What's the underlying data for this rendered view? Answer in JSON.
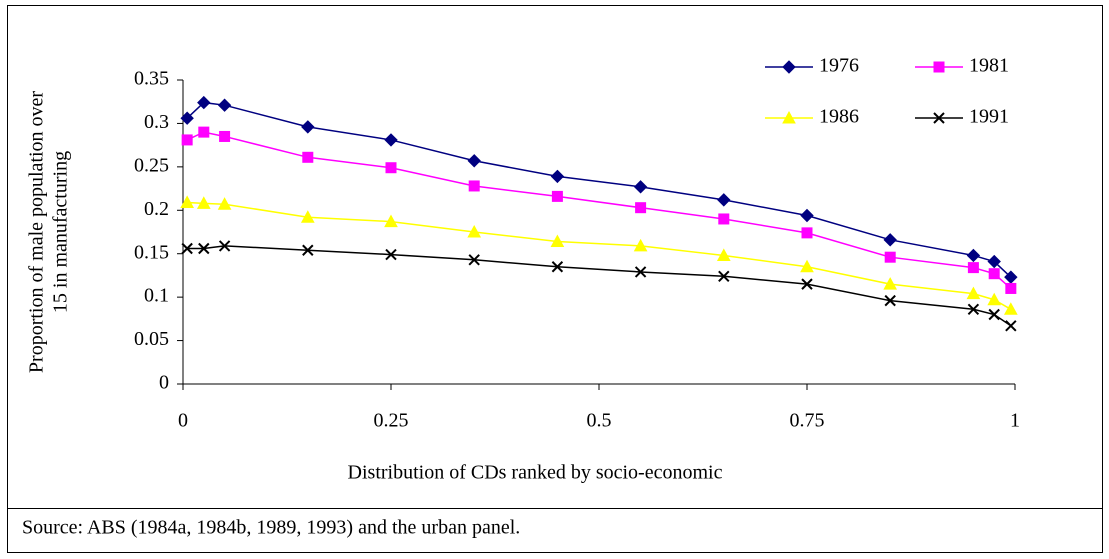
{
  "chart_data": {
    "type": "line",
    "ylabel": [
      "Proportion of male population over",
      "15  in manufacturing"
    ],
    "xlabel": "Distribution of CDs ranked by socio-economic",
    "note": "Source: ABS (1984a, 1984b, 1989, 1993) and the urban panel.",
    "x": [
      0.005,
      0.025,
      0.05,
      0.15,
      0.25,
      0.35,
      0.45,
      0.55,
      0.65,
      0.75,
      0.85,
      0.95,
      0.975,
      0.995
    ],
    "series": [
      {
        "name": "1976",
        "color": "#000080",
        "marker": "diamond",
        "values": [
          0.306,
          0.324,
          0.321,
          0.296,
          0.281,
          0.257,
          0.239,
          0.227,
          0.212,
          0.194,
          0.166,
          0.148,
          0.141,
          0.123
        ]
      },
      {
        "name": "1981",
        "color": "#ff00ff",
        "marker": "square",
        "values": [
          0.281,
          0.29,
          0.285,
          0.261,
          0.249,
          0.228,
          0.216,
          0.203,
          0.19,
          0.174,
          0.146,
          0.134,
          0.127,
          0.11
        ]
      },
      {
        "name": "1986",
        "color": "#ffff00",
        "marker": "triangle",
        "values": [
          0.209,
          0.208,
          0.207,
          0.192,
          0.187,
          0.175,
          0.164,
          0.159,
          0.148,
          0.135,
          0.115,
          0.104,
          0.097,
          0.086
        ]
      },
      {
        "name": "1991",
        "color": "#000000",
        "marker": "x",
        "values": [
          0.156,
          0.156,
          0.159,
          0.154,
          0.149,
          0.143,
          0.135,
          0.129,
          0.124,
          0.115,
          0.096,
          0.086,
          0.08,
          0.067
        ]
      }
    ],
    "xlim": [
      0,
      1
    ],
    "xticks": [
      0,
      0.25,
      0.5,
      0.75,
      1
    ],
    "ylim": [
      0,
      0.35
    ],
    "yticks": [
      0,
      0.05,
      0.1,
      0.15,
      0.2,
      0.25,
      0.3,
      0.35
    ],
    "grid": false,
    "legend": "upper right"
  }
}
